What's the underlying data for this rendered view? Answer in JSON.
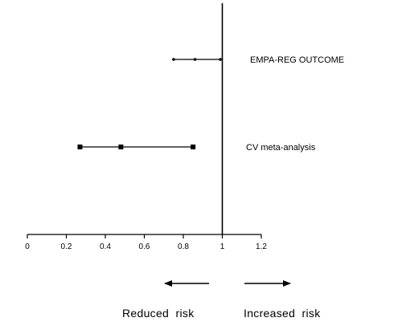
{
  "chart_data": {
    "type": "forest",
    "xlim": [
      0,
      1.2
    ],
    "x_ticks": [
      0,
      0.2,
      0.4,
      0.6,
      0.8,
      1,
      1.2
    ],
    "x_tick_labels": [
      "0",
      "0.2",
      "0.4",
      "0.6",
      "0.8",
      "1",
      "1.2"
    ],
    "reference_line": 1,
    "grid": false,
    "studies": [
      {
        "label": "EMPA-REG OUTCOME",
        "lower": 0.75,
        "estimate": 0.86,
        "upper": 0.99,
        "marker": "small-dot"
      },
      {
        "label": "CV meta-analysis",
        "lower": 0.27,
        "estimate": 0.48,
        "upper": 0.85,
        "marker": "square"
      }
    ],
    "direction_labels": {
      "left": "Reduced  risk",
      "right": "Increased  risk"
    },
    "colors": {
      "ink": "#000000",
      "background": "#ffffff"
    }
  }
}
